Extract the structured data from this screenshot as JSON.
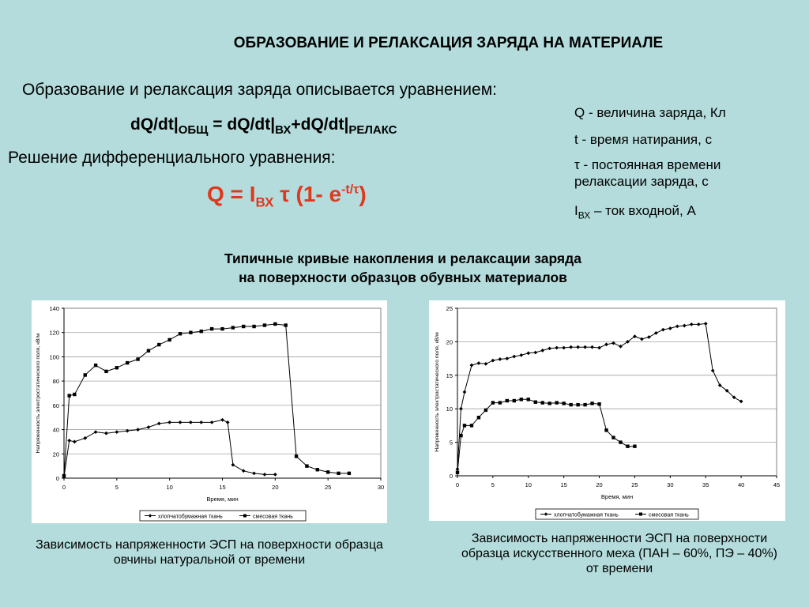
{
  "title": "ОБРАЗОВАНИЕ И РЕЛАКСАЦИЯ ЗАРЯДА НА МАТЕРИАЛЕ",
  "intro": "Образование и релаксация заряда описывается уравнением:",
  "equation1": {
    "p1": "dQ/dt|",
    "s1": "ОБЩ",
    "p2": " = dQ/dt|",
    "s2": "ВХ",
    "p3": "+dQ/dt|",
    "s3": "РЕЛАКС"
  },
  "solution_label": "Решение дифференциального уравнения:",
  "equation2": {
    "p1": "Q = I",
    "s1": "ВХ",
    "tau": "τ",
    "p2": " (1- e",
    "sup": "-t/τ",
    "p3": ")"
  },
  "legend": {
    "q": "Q - величина заряда, Кл",
    "t": "t - время натирания, с",
    "tau": "τ - постоянная времени релаксации заряда, с",
    "i_main": "I",
    "i_sub": "ВХ",
    "i_rest": " – ток входной, А"
  },
  "subtitle_line1": "Типичные кривые накопления и релаксации заряда",
  "subtitle_line2": "на поверхности образцов обувных материалов",
  "accent_color": "#e0381c",
  "caption1": "Зависимость напряженности ЭСП на поверхности образца овчины натуральной от времени",
  "caption2": "Зависимость напряженности ЭСП на поверхности образца искусственного меха (ПАН – 60%, ПЭ – 40%) от времени",
  "chart_data": [
    {
      "type": "line",
      "xlabel": "Время, мин",
      "ylabel": "Напряженность электростатического поля, кВ/м",
      "xlim": [
        0,
        30
      ],
      "ylim": [
        0,
        140
      ],
      "xticks": [
        0,
        5,
        10,
        15,
        20,
        25,
        30
      ],
      "yticks": [
        0,
        20,
        40,
        60,
        80,
        100,
        120,
        140
      ],
      "grid": "horizontal",
      "legend_position": "bottom",
      "series": [
        {
          "name": "хлопчатобумажная ткань",
          "marker": "diamond",
          "x": [
            0,
            0.5,
            1,
            2,
            3,
            4,
            5,
            6,
            7,
            8,
            9,
            10,
            11,
            12,
            13,
            14,
            15,
            15.5,
            16,
            17,
            18,
            19,
            20
          ],
          "y": [
            1,
            31,
            30,
            33,
            38,
            37,
            38,
            39,
            40,
            42,
            45,
            46,
            46,
            46,
            46,
            46,
            48,
            46,
            11,
            6,
            4,
            3,
            3
          ]
        },
        {
          "name": "смесовая ткань",
          "marker": "square",
          "x": [
            0,
            0.5,
            1,
            2,
            3,
            4,
            5,
            6,
            7,
            8,
            9,
            10,
            11,
            12,
            13,
            14,
            15,
            16,
            17,
            18,
            19,
            20,
            21,
            22,
            23,
            24,
            25,
            26,
            27
          ],
          "y": [
            2,
            68,
            69,
            85,
            93,
            88,
            91,
            95,
            98,
            105,
            110,
            114,
            119,
            120,
            121,
            123,
            123,
            124,
            125,
            125,
            126,
            127,
            126,
            18,
            10,
            7,
            5,
            4,
            4
          ]
        }
      ]
    },
    {
      "type": "line",
      "xlabel": "Время, мин",
      "ylabel": "Напряженность электростатического поля, кВ/м",
      "xlim": [
        0,
        45
      ],
      "ylim": [
        0,
        25
      ],
      "xticks": [
        0,
        5,
        10,
        15,
        20,
        25,
        30,
        35,
        40,
        45
      ],
      "yticks": [
        0,
        5,
        10,
        15,
        20,
        25
      ],
      "grid": "horizontal",
      "legend_position": "bottom",
      "series": [
        {
          "name": "хлопчатобумажная ткань",
          "marker": "diamond",
          "x": [
            0,
            0.5,
            1,
            2,
            3,
            4,
            5,
            6,
            7,
            8,
            9,
            10,
            11,
            12,
            13,
            14,
            15,
            16,
            17,
            18,
            19,
            20,
            21,
            22,
            23,
            24,
            25,
            26,
            27,
            28,
            29,
            30,
            31,
            32,
            33,
            34,
            35,
            36,
            37,
            38,
            39,
            40
          ],
          "y": [
            1,
            10,
            12.5,
            16.5,
            16.8,
            16.7,
            17.2,
            17.4,
            17.5,
            17.8,
            18,
            18.3,
            18.4,
            18.7,
            19,
            19.1,
            19.1,
            19.2,
            19.2,
            19.2,
            19.2,
            19.1,
            19.6,
            19.8,
            19.3,
            20,
            20.8,
            20.4,
            20.7,
            21.3,
            21.8,
            22,
            22.3,
            22.4,
            22.6,
            22.6,
            22.7,
            15.7,
            13.5,
            12.7,
            11.7,
            11.1
          ]
        },
        {
          "name": "смесовая ткань",
          "marker": "square",
          "x": [
            0,
            0.5,
            1,
            2,
            3,
            4,
            5,
            6,
            7,
            8,
            9,
            10,
            11,
            12,
            13,
            14,
            15,
            16,
            17,
            18,
            19,
            20,
            21,
            22,
            23,
            24,
            25
          ],
          "y": [
            0.5,
            6,
            7.5,
            7.5,
            8.7,
            9.8,
            10.9,
            10.9,
            11.2,
            11.2,
            11.4,
            11.4,
            11,
            10.9,
            10.8,
            10.9,
            10.8,
            10.6,
            10.6,
            10.6,
            10.8,
            10.7,
            6.8,
            5.7,
            5,
            4.4,
            4.4
          ]
        }
      ]
    }
  ]
}
